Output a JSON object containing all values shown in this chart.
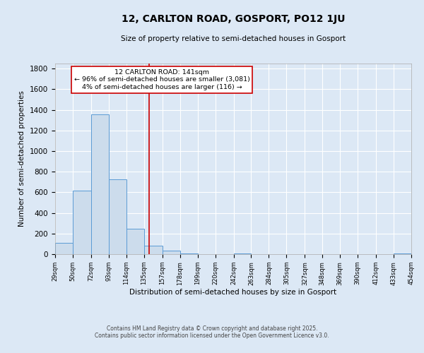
{
  "title": "12, CARLTON ROAD, GOSPORT, PO12 1JU",
  "subtitle": "Size of property relative to semi-detached houses in Gosport",
  "xlabel": "Distribution of semi-detached houses by size in Gosport",
  "ylabel": "Number of semi-detached properties",
  "bin_edges": [
    29,
    50,
    72,
    93,
    114,
    135,
    157,
    178,
    199,
    220,
    242,
    263,
    284,
    305,
    327,
    348,
    369,
    390,
    412,
    433,
    454
  ],
  "bar_heights": [
    110,
    615,
    1360,
    725,
    250,
    80,
    35,
    10,
    0,
    0,
    5,
    0,
    0,
    0,
    0,
    0,
    0,
    0,
    0,
    5
  ],
  "bar_color": "#ccdcec",
  "bar_edge_color": "#5b9bd5",
  "vline_x": 141,
  "vline_color": "#cc0000",
  "ylim": [
    0,
    1850
  ],
  "yticks": [
    0,
    200,
    400,
    600,
    800,
    1000,
    1200,
    1400,
    1600,
    1800
  ],
  "annotation_title": "12 CARLTON ROAD: 141sqm",
  "annotation_line1": "← 96% of semi-detached houses are smaller (3,081)",
  "annotation_line2": "4% of semi-detached houses are larger (116) →",
  "footer_line1": "Contains HM Land Registry data © Crown copyright and database right 2025.",
  "footer_line2": "Contains public sector information licensed under the Open Government Licence v3.0.",
  "bg_color": "#dce8f5",
  "plot_bg_color": "#dce8f5",
  "tick_labels": [
    "29sqm",
    "50sqm",
    "72sqm",
    "93sqm",
    "114sqm",
    "135sqm",
    "157sqm",
    "178sqm",
    "199sqm",
    "220sqm",
    "242sqm",
    "263sqm",
    "284sqm",
    "305sqm",
    "327sqm",
    "348sqm",
    "369sqm",
    "390sqm",
    "412sqm",
    "433sqm",
    "454sqm"
  ]
}
